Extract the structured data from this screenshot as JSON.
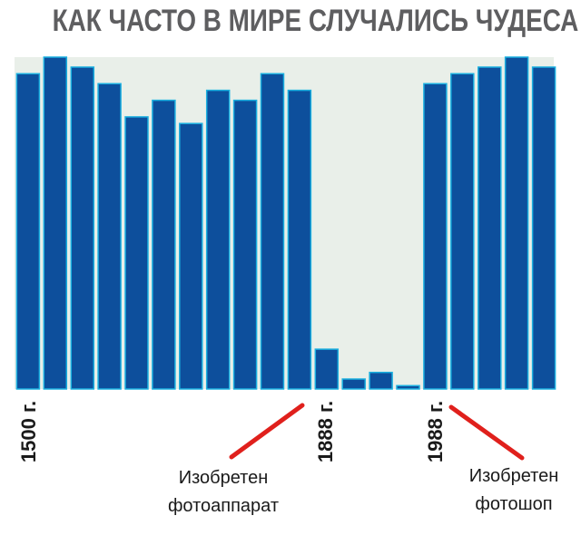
{
  "chart_data": {
    "type": "bar",
    "title": "КАК ЧАСТО В МИРЕ СЛУЧАЛИСЬ  ЧУДЕСА",
    "xlabel": "",
    "ylabel": "",
    "ylim": [
      0,
      100
    ],
    "grid": false,
    "colors": {
      "bar": "#0d4f9c",
      "bar_edge": "#1ab0e0",
      "plot_bg": "#e9efe9",
      "arrow": "#e0201c"
    },
    "values": [
      95,
      100,
      97,
      92,
      82,
      87,
      80,
      90,
      87,
      95,
      90,
      12,
      3,
      5,
      1,
      92,
      95,
      97,
      100,
      97
    ],
    "tick_labels": [
      {
        "text": "1500 г.",
        "bar_index": 0
      },
      {
        "text": "1888 г.",
        "bar_index": 11
      },
      {
        "text": "1988 г.",
        "bar_index": 15
      }
    ],
    "annotations": [
      {
        "lines": [
          "Изобретен",
          "фотоаппарат"
        ],
        "bar_index": 11
      },
      {
        "lines": [
          "Изобретен",
          "фотошоп"
        ],
        "bar_index": 15
      }
    ]
  }
}
